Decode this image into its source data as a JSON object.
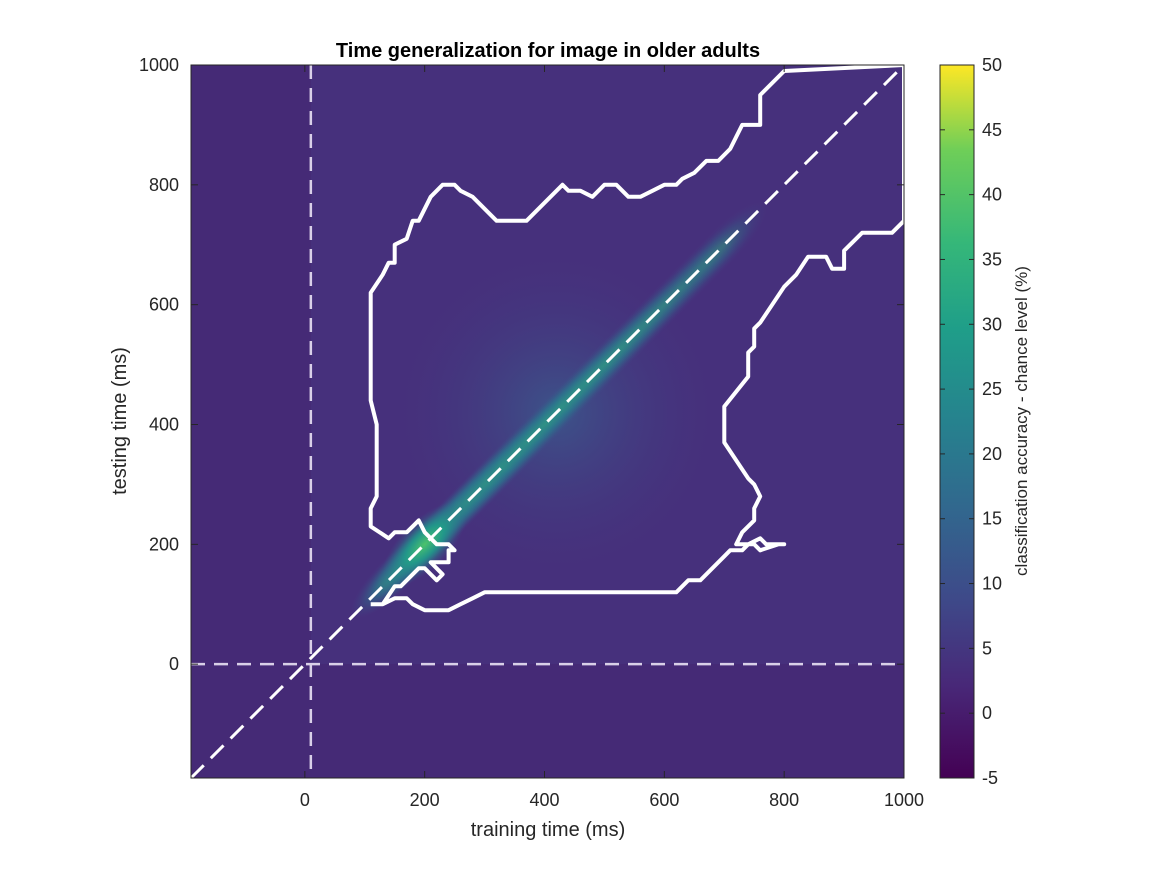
{
  "chart_data": {
    "type": "heatmap",
    "title": "Time generalization for image in older adults",
    "xlabel": "training time (ms)",
    "ylabel": "testing time (ms)",
    "xlim": [
      -190,
      1000
    ],
    "ylim": [
      -190,
      1000
    ],
    "x_ticks": [
      0,
      200,
      400,
      600,
      800,
      1000
    ],
    "y_ticks": [
      0,
      200,
      400,
      600,
      800,
      1000
    ],
    "colorbar": {
      "label": "classification accuracy - chance level (%)",
      "range": [
        -5,
        50
      ],
      "ticks": [
        -5,
        0,
        5,
        10,
        15,
        20,
        25,
        30,
        35,
        40,
        45,
        50
      ],
      "colormap": "viridis"
    },
    "reference_lines": {
      "vertical_x": 10,
      "horizontal_y": 0,
      "diagonal": true,
      "color": "#d9d0e8",
      "style": "dashed"
    },
    "peak": {
      "x": 200,
      "y": 200,
      "value": 25
    },
    "significance_contour": {
      "color": "#ffffff",
      "points": [
        [
          110,
          100
        ],
        [
          130,
          100
        ],
        [
          150,
          130
        ],
        [
          160,
          130
        ],
        [
          190,
          160
        ],
        [
          200,
          160
        ],
        [
          220,
          140
        ],
        [
          230,
          150
        ],
        [
          210,
          170
        ],
        [
          240,
          170
        ],
        [
          240,
          190
        ],
        [
          250,
          190
        ],
        [
          240,
          200
        ],
        [
          220,
          200
        ],
        [
          200,
          220
        ],
        [
          190,
          240
        ],
        [
          180,
          230
        ],
        [
          170,
          220
        ],
        [
          150,
          220
        ],
        [
          140,
          210
        ],
        [
          110,
          230
        ],
        [
          110,
          260
        ],
        [
          120,
          280
        ],
        [
          120,
          400
        ],
        [
          110,
          440
        ],
        [
          110,
          570
        ],
        [
          110,
          620
        ],
        [
          130,
          650
        ],
        [
          140,
          670
        ],
        [
          150,
          670
        ],
        [
          150,
          700
        ],
        [
          170,
          710
        ],
        [
          180,
          740
        ],
        [
          190,
          740
        ],
        [
          200,
          760
        ],
        [
          210,
          780
        ],
        [
          230,
          800
        ],
        [
          250,
          800
        ],
        [
          260,
          790
        ],
        [
          280,
          780
        ],
        [
          300,
          760
        ],
        [
          320,
          740
        ],
        [
          340,
          740
        ],
        [
          370,
          740
        ],
        [
          390,
          760
        ],
        [
          410,
          780
        ],
        [
          430,
          800
        ],
        [
          440,
          790
        ],
        [
          460,
          790
        ],
        [
          480,
          780
        ],
        [
          500,
          800
        ],
        [
          520,
          800
        ],
        [
          540,
          780
        ],
        [
          560,
          780
        ],
        [
          580,
          790
        ],
        [
          600,
          800
        ],
        [
          620,
          800
        ],
        [
          630,
          810
        ],
        [
          650,
          820
        ],
        [
          670,
          840
        ],
        [
          690,
          840
        ],
        [
          710,
          860
        ],
        [
          720,
          880
        ],
        [
          730,
          900
        ],
        [
          760,
          900
        ],
        [
          760,
          950
        ],
        [
          800,
          990
        ],
        [
          1000,
          1000
        ],
        [
          1000,
          740
        ],
        [
          980,
          720
        ],
        [
          930,
          720
        ],
        [
          900,
          690
        ],
        [
          900,
          660
        ],
        [
          880,
          660
        ],
        [
          870,
          680
        ],
        [
          840,
          680
        ],
        [
          820,
          650
        ],
        [
          800,
          630
        ],
        [
          780,
          600
        ],
        [
          760,
          570
        ],
        [
          750,
          560
        ],
        [
          750,
          530
        ],
        [
          740,
          520
        ],
        [
          740,
          480
        ],
        [
          700,
          430
        ],
        [
          700,
          370
        ],
        [
          740,
          310
        ],
        [
          750,
          300
        ],
        [
          760,
          280
        ],
        [
          750,
          260
        ],
        [
          750,
          240
        ],
        [
          730,
          220
        ],
        [
          720,
          200
        ],
        [
          750,
          200
        ],
        [
          760,
          190
        ],
        [
          790,
          200
        ],
        [
          800,
          200
        ],
        [
          770,
          200
        ],
        [
          760,
          210
        ],
        [
          740,
          200
        ],
        [
          730,
          190
        ],
        [
          710,
          190
        ],
        [
          700,
          180
        ],
        [
          690,
          170
        ],
        [
          680,
          160
        ],
        [
          670,
          150
        ],
        [
          660,
          140
        ],
        [
          640,
          140
        ],
        [
          630,
          130
        ],
        [
          620,
          120
        ],
        [
          600,
          120
        ],
        [
          580,
          120
        ],
        [
          560,
          120
        ],
        [
          540,
          120
        ],
        [
          520,
          120
        ],
        [
          500,
          120
        ],
        [
          480,
          120
        ],
        [
          460,
          120
        ],
        [
          440,
          120
        ],
        [
          420,
          120
        ],
        [
          400,
          120
        ],
        [
          380,
          120
        ],
        [
          360,
          120
        ],
        [
          340,
          120
        ],
        [
          320,
          120
        ],
        [
          300,
          120
        ],
        [
          280,
          110
        ],
        [
          260,
          100
        ],
        [
          240,
          90
        ],
        [
          220,
          90
        ],
        [
          200,
          90
        ],
        [
          180,
          100
        ],
        [
          170,
          110
        ],
        [
          150,
          110
        ],
        [
          130,
          100
        ],
        [
          110,
          100
        ]
      ]
    }
  }
}
